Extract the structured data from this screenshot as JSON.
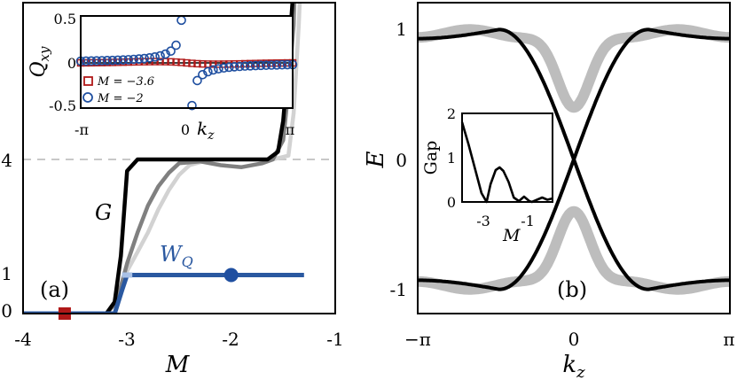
{
  "chart_data": [
    {
      "panel": "(a)",
      "type": "line",
      "xlabel": "M",
      "xlim": [
        -4,
        -1
      ],
      "xticks": [
        "-4",
        "-3",
        "-2",
        "-1"
      ],
      "yticks": [
        "0",
        "1",
        "4"
      ],
      "series": [
        {
          "name": "G",
          "color": "#000000",
          "x": [
            -4,
            -3.2,
            -3.12,
            -3.06,
            -3.0,
            -2.9,
            -2.75,
            -2.6,
            -2.4,
            -2.2,
            -2.0,
            -1.8,
            -1.65,
            -1.55,
            -1.5,
            -1.45,
            -1.4,
            -1.38
          ],
          "y": [
            0,
            0,
            0.3,
            1.5,
            3.7,
            4.0,
            4.0,
            4.0,
            4.0,
            4.0,
            4.0,
            4.0,
            4.0,
            4.2,
            5.0,
            6.6,
            8.5,
            9.5
          ]
        },
        {
          "name": "",
          "color": "#808080",
          "x": [
            -4,
            -3.2,
            -3.1,
            -3.0,
            -2.9,
            -2.8,
            -2.7,
            -2.6,
            -2.5,
            -2.3,
            -2.1,
            -1.9,
            -1.7,
            -1.6,
            -1.5,
            -1.45,
            -1.4,
            -1.38
          ],
          "y": [
            0,
            0,
            0.3,
            1.3,
            2.1,
            2.8,
            3.3,
            3.65,
            3.9,
            3.95,
            3.85,
            3.8,
            3.9,
            4.0,
            4.5,
            5.8,
            7.5,
            9.5
          ]
        },
        {
          "name": "",
          "color": "#d2d2d2",
          "x": [
            -4,
            -3.2,
            -3.1,
            -3.0,
            -2.9,
            -2.8,
            -2.7,
            -2.6,
            -2.5,
            -2.4,
            -2.2,
            -2.0,
            -1.8,
            -1.6,
            -1.45,
            -1.4,
            -1.35,
            -1.32
          ],
          "y": [
            0,
            0,
            0.3,
            1.1,
            1.6,
            2.1,
            2.7,
            3.2,
            3.6,
            3.85,
            4.0,
            4.0,
            4.0,
            4.0,
            4.1,
            5.2,
            7.5,
            9.5
          ]
        },
        {
          "name": "W_Q",
          "color": "#2a58a0",
          "x": [
            -4,
            -3.12,
            -3.05,
            -3.0,
            -1.3
          ],
          "y": [
            0,
            0,
            0.6,
            1,
            1
          ]
        }
      ],
      "markers": [
        {
          "shape": "square",
          "x": -3.6,
          "y": 0,
          "color": "#b01818"
        },
        {
          "shape": "circle",
          "x": -2,
          "y": 1,
          "color": "#1f4fa0"
        }
      ],
      "inset": {
        "type": "scatter",
        "ylabel": "Q_xy",
        "xlabel": "k_z",
        "xticks": [
          "-π",
          "0",
          "π"
        ],
        "yticks": [
          "0.5",
          "0",
          "-0.5"
        ],
        "ylim": [
          -0.55,
          0.55
        ],
        "legend": [
          "M = −3.6",
          "M = −2"
        ]
      }
    },
    {
      "panel": "(b)",
      "type": "line",
      "ylabel": "E",
      "xlabel": "k_z",
      "xticks": [
        "−π",
        "0",
        "π"
      ],
      "yticks": [
        "1",
        "0",
        "-1"
      ],
      "ylim": [
        -1.2,
        1.2
      ],
      "inset": {
        "type": "line",
        "ylabel": "Gap",
        "xlabel": "M",
        "xticks": [
          "-3",
          "-1"
        ],
        "yticks": [
          "2",
          "1",
          "0"
        ],
        "xlim": [
          -4,
          -0.5
        ],
        "ylim": [
          0,
          2
        ],
        "x": [
          -4,
          -3.75,
          -3.5,
          -3.25,
          -3.05,
          -2.9,
          -2.7,
          -2.55,
          -2.4,
          -2.2,
          -2.0,
          -1.8,
          -1.6,
          -1.4,
          -1.3,
          -1.1,
          -0.9,
          -0.7,
          -0.5
        ],
        "y": [
          1.8,
          1.3,
          0.75,
          0.2,
          0.0,
          0.4,
          0.72,
          0.78,
          0.7,
          0.45,
          0.1,
          0.02,
          0.12,
          0.02,
          0.0,
          0.05,
          0.1,
          0.05,
          0.08
        ]
      }
    }
  ],
  "labels": {
    "a": "(a)",
    "b": "(b)",
    "g": "G",
    "w": "W",
    "w_sub": "Q",
    "m": "M",
    "e": "E",
    "k": "k",
    "k_sub": "z",
    "q": "Q",
    "q_sub": "xy",
    "gap": "Gap",
    "leg1": "M = −3.6",
    "leg2": "M = −2",
    "inset_x0": "0",
    "inset_a_xneg": "-π",
    "inset_a_xpos": "π",
    "inset_b_x1": "-3",
    "inset_b_x2": "-1",
    "inset_b_m": "M"
  },
  "colors": {
    "red": "#b01818",
    "blue": "#2a58a0",
    "gray": "#808080",
    "light": "#d2d2d2"
  }
}
